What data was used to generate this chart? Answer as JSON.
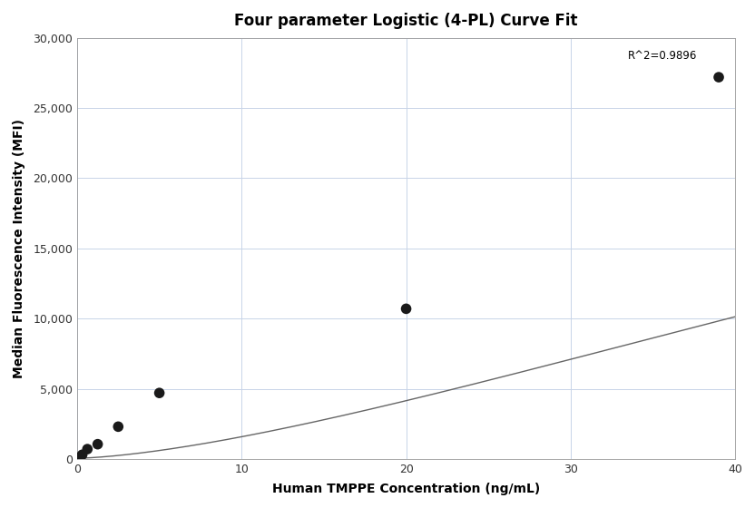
{
  "title": "Four parameter Logistic (4-PL) Curve Fit",
  "xlabel": "Human TMPPE Concentration (ng/mL)",
  "ylabel": "Median Fluorescence Intensity (MFI)",
  "scatter_x": [
    0.156,
    0.313,
    0.625,
    1.25,
    2.5,
    5.0,
    20.0,
    39.0
  ],
  "scatter_y": [
    120,
    300,
    700,
    1050,
    2300,
    4700,
    10700,
    27200
  ],
  "xlim": [
    0,
    40
  ],
  "ylim": [
    0,
    30000
  ],
  "xticks": [
    0,
    10,
    20,
    30,
    40
  ],
  "yticks": [
    0,
    5000,
    10000,
    15000,
    20000,
    25000,
    30000
  ],
  "r2_text": "R^2=0.9896",
  "r2_x": 33.5,
  "r2_y": 28300,
  "curve_color": "#666666",
  "scatter_color": "#1a1a1a",
  "grid_color": "#c8d4e8",
  "background_color": "#ffffff",
  "title_fontsize": 12,
  "label_fontsize": 10,
  "tick_fontsize": 9
}
